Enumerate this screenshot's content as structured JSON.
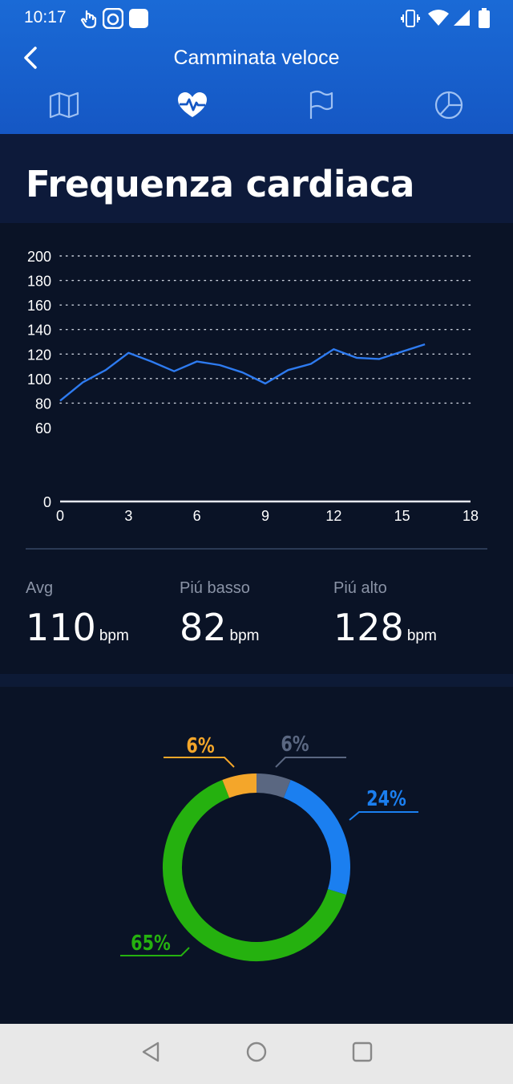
{
  "status_bar": {
    "time": "10:17",
    "icons": [
      "touch-icon",
      "app-icon",
      "square-app-icon",
      "vibrate-icon",
      "wifi-icon",
      "cell-signal-icon",
      "battery-icon"
    ]
  },
  "header": {
    "title": "Camminata veloce",
    "tabs": [
      {
        "name": "map-icon",
        "active": false
      },
      {
        "name": "heart-rate-icon",
        "active": true
      },
      {
        "name": "flag-icon",
        "active": false
      },
      {
        "name": "pie-chart-icon",
        "active": false
      }
    ]
  },
  "section": {
    "title": "Frequenza cardiaca"
  },
  "chart_data": {
    "type": "line",
    "title": "",
    "xlabel": "",
    "ylabel": "",
    "xlim": [
      0,
      18
    ],
    "ylim": [
      0,
      200
    ],
    "x_ticks": [
      "0",
      "3",
      "6",
      "9",
      "12",
      "15",
      "18"
    ],
    "y_ticks": [
      "0",
      "60",
      "80",
      "100",
      "120",
      "140",
      "160",
      "180",
      "200"
    ],
    "grid": "dotted-horizontal",
    "series": [
      {
        "color": "#2e7bf0",
        "x": [
          0,
          1,
          2,
          3,
          4,
          5,
          6,
          7,
          8,
          9,
          10,
          11,
          12,
          13,
          14,
          15,
          16
        ],
        "y": [
          82,
          97,
          107,
          121,
          114,
          106,
          114,
          111,
          105,
          96,
          107,
          112,
          124,
          117,
          116,
          122,
          128
        ]
      }
    ]
  },
  "stats": [
    {
      "label": "Avg",
      "value": "110",
      "unit": "bpm"
    },
    {
      "label": "Piú basso",
      "value": "82",
      "unit": "bpm"
    },
    {
      "label": "Piú alto",
      "value": "128",
      "unit": "bpm"
    }
  ],
  "zones": {
    "type": "donut",
    "slices": [
      {
        "label": "6%",
        "value": 6,
        "color": "#5a6781"
      },
      {
        "label": "24%",
        "value": 24,
        "color": "#1b7ff0"
      },
      {
        "label": "65%",
        "value": 65,
        "color": "#25b10f"
      },
      {
        "label": "6%",
        "value": 6,
        "color": "#f4a62a"
      }
    ]
  },
  "nav": {
    "buttons": [
      "back-triangle-icon",
      "home-circle-icon",
      "recents-square-icon"
    ]
  }
}
